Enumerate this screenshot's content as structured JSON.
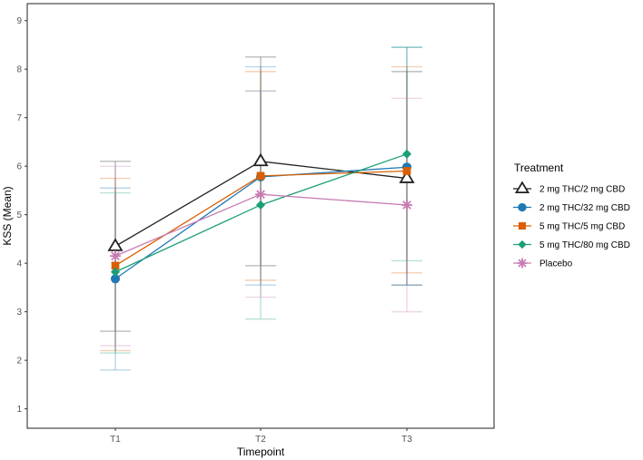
{
  "chart_data": {
    "type": "line",
    "title": "",
    "xlabel": "Timepoint",
    "ylabel": "KSS (Mean)",
    "categories": [
      "T1",
      "T2",
      "T3"
    ],
    "ylim": [
      0.6,
      9.35
    ],
    "yticks": [
      1,
      2,
      3,
      4,
      5,
      6,
      7,
      8,
      9
    ],
    "grid": false,
    "legend_title": "Treatment",
    "legend_position": "right",
    "series": [
      {
        "name": "2 mg THC/2 mg CBD",
        "color": "#222222",
        "marker": "triangle-open",
        "values": [
          4.35,
          6.1,
          5.75
        ],
        "lower": [
          2.6,
          3.95,
          3.55
        ],
        "upper": [
          6.1,
          8.25,
          7.95
        ]
      },
      {
        "name": "2 mg THC/32 mg CBD",
        "color": "#1f78b4",
        "marker": "circle",
        "values": [
          3.68,
          5.78,
          5.98
        ],
        "lower": [
          1.8,
          3.55,
          3.55
        ],
        "upper": [
          5.55,
          8.05,
          8.45
        ]
      },
      {
        "name": "5 mg THC/5 mg CBD",
        "color": "#d95f02",
        "marker": "square",
        "values": [
          3.95,
          5.8,
          5.9
        ],
        "lower": [
          2.2,
          3.65,
          3.8
        ],
        "upper": [
          5.75,
          7.95,
          8.05
        ]
      },
      {
        "name": "5 mg THC/80 mg CBD",
        "color": "#1b9e77",
        "marker": "diamond",
        "values": [
          3.82,
          5.2,
          6.25
        ],
        "lower": [
          2.15,
          2.85,
          4.05
        ],
        "upper": [
          5.45,
          7.55,
          8.45
        ]
      },
      {
        "name": "Placebo",
        "color": "#c77cb3",
        "marker": "asterisk",
        "values": [
          4.15,
          5.42,
          5.2
        ],
        "lower": [
          2.3,
          3.3,
          3.0
        ],
        "upper": [
          6.0,
          7.55,
          7.4
        ]
      }
    ]
  }
}
